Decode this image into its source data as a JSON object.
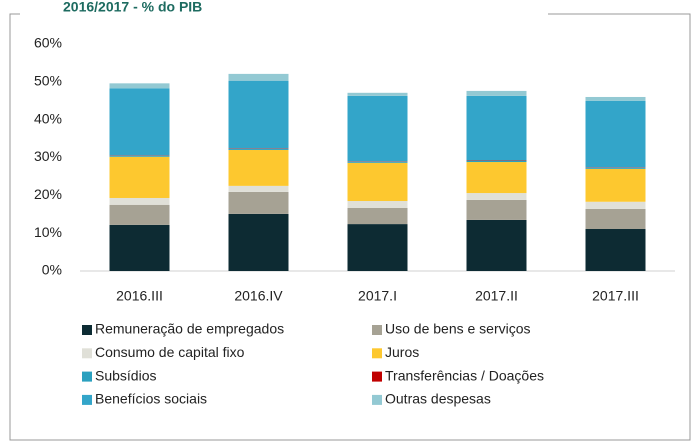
{
  "chart_data": {
    "type": "stacked_bar",
    "title": "2016/2017 - % do PIB",
    "categories": [
      "2016.III",
      "2016.IV",
      "2017.I",
      "2017.II",
      "2017.III"
    ],
    "series": [
      {
        "name": "Remuneração de empregados",
        "color": "#0d2b33",
        "values": [
          12.2,
          15.1,
          12.4,
          13.5,
          11.1
        ]
      },
      {
        "name": "Uso de bens e serviços",
        "color": "#a6a294",
        "values": [
          5.3,
          5.8,
          4.3,
          5.3,
          5.3
        ]
      },
      {
        "name": "Consumo de capital fixo",
        "color": "#e0e0d8",
        "values": [
          1.8,
          1.6,
          1.8,
          1.8,
          1.9
        ]
      },
      {
        "name": "Juros",
        "color": "#fdc82f",
        "values": [
          10.9,
          9.5,
          10.1,
          8.2,
          8.7
        ]
      },
      {
        "name": "Subsídios",
        "color": "#2aa0bf",
        "values": [
          0.3,
          0.3,
          0.3,
          0.3,
          0.3
        ]
      },
      {
        "name": "Transferências / Doações",
        "color": "#c00000",
        "values": [
          0.1,
          0.1,
          0.1,
          0.1,
          0.1
        ]
      },
      {
        "name": "Benefícios sociais",
        "color": "#33a5c9",
        "values": [
          17.7,
          17.9,
          17.3,
          17.1,
          17.6
        ]
      },
      {
        "name": "Outras despesas",
        "color": "#93c9d3",
        "values": [
          1.3,
          1.8,
          0.8,
          1.3,
          1.0
        ]
      }
    ],
    "ylim": [
      0,
      60
    ],
    "yticks": [
      {
        "value": 0,
        "label": "0%"
      },
      {
        "value": 10,
        "label": "10%"
      },
      {
        "value": 20,
        "label": "20%"
      },
      {
        "value": 30,
        "label": "30%"
      },
      {
        "value": 40,
        "label": "40%"
      },
      {
        "value": 50,
        "label": "50%"
      },
      {
        "value": 60,
        "label": "60%"
      }
    ],
    "grid": false
  }
}
